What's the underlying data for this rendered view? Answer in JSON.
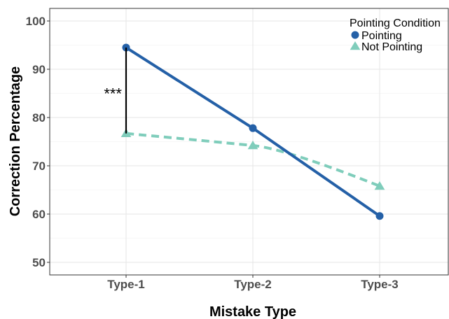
{
  "chart_data": {
    "type": "line",
    "categories": [
      "Type-1",
      "Type-2",
      "Type-3"
    ],
    "series": [
      {
        "name": "Pointing",
        "values": [
          94.5,
          77.8,
          59.6
        ],
        "color": "#2460a7",
        "marker": "circle",
        "line": "solid"
      },
      {
        "name": "Not Pointing",
        "values": [
          76.7,
          74.2,
          65.8
        ],
        "color": "#7fcdbb",
        "marker": "triangle",
        "line": "dashed"
      }
    ],
    "xlabel": "Mistake Type",
    "ylabel": "Correction Percentage",
    "ylim": [
      48,
      102.5
    ],
    "yticks": [
      50,
      60,
      70,
      80,
      90,
      100
    ],
    "grid": true,
    "legend": {
      "title": "Pointing Condition",
      "position": "top-right"
    },
    "annotation": {
      "text": "***",
      "category": "Type-1",
      "from": 76.7,
      "to": 94.5
    }
  }
}
